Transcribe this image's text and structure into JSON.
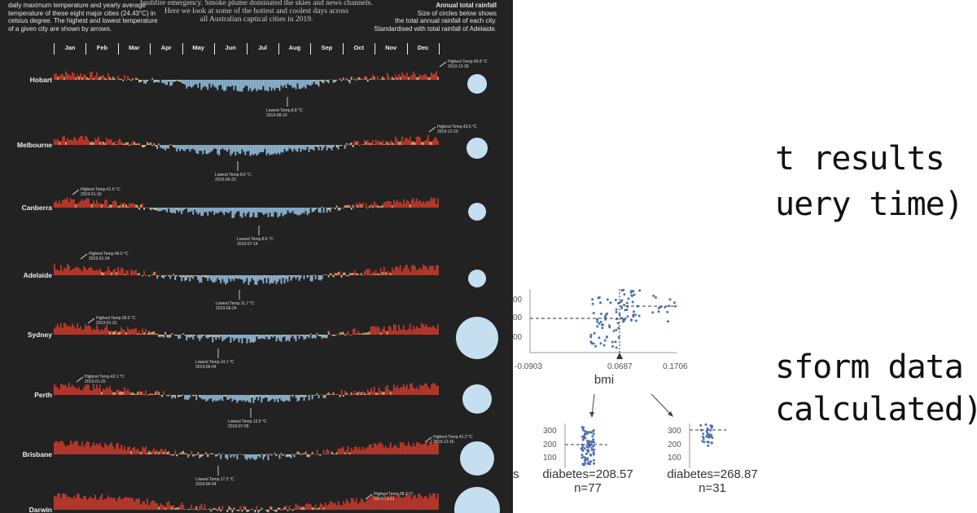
{
  "infographic": {
    "left_intro": [
      "daily maximum temperature and yearly average",
      "temperature of these eight major cities (24.43°C) in",
      "celsius degree. The highest and lowest temperature",
      "of a given city are shown by arrows."
    ],
    "center_intro": [
      "bushfire emergency. Smoke plume dominated the skies and news channels.",
      "Here we look at some of the hottest and coolest days across",
      "all Australian captical cities in 2019."
    ],
    "rainfall": {
      "title": "Annual total rainfall",
      "lines": [
        "Size of circles below shows",
        "the total annual rainfall of each city.",
        "Standardised with total rainfall of Adelaide."
      ]
    },
    "months": [
      "Jan",
      "Feb",
      "Mar",
      "Apr",
      "May",
      "Jun",
      "Jul",
      "Aug",
      "Sep",
      "Oct",
      "Nov",
      "Dec"
    ],
    "cities": [
      {
        "name": "Hobart",
        "high": "Highest Temp.40.8 °C",
        "high_date": "2019-12-30",
        "low": "Lowest Temp.8.8 °C",
        "low_date": "2019-08-10"
      },
      {
        "name": "Melbourne",
        "high": "Highest Temp.43.5 °C",
        "high_date": "2019-12-20",
        "low": "Lowest Temp.9.6 °C",
        "low_date": "2019-06-23"
      },
      {
        "name": "Canberra",
        "high": "Highest Temp.41.6 °C",
        "high_date": "2019-01-16",
        "low": "Lowest Temp.8.6 °C",
        "low_date": "2019-07-14"
      },
      {
        "name": "Adelaide",
        "high": "Highest Temp.46.6 °C",
        "high_date": "2019-01-24",
        "low": "Lowest Temp.11.7 °C",
        "low_date": "2019-06-24"
      },
      {
        "name": "Sydney",
        "high": "Highest Temp.39.6 °C",
        "high_date": "2019-01-31",
        "low": "Lowest Temp.14.1 °C",
        "low_date": "2019-06-04"
      },
      {
        "name": "Perth",
        "high": "Highest Temp.42.1 °C",
        "high_date": "2019-01-20",
        "low": "Lowest Temp.13.5 °C",
        "low_date": "2019-07-05"
      },
      {
        "name": "Brisbane",
        "high": "Highest Temp.41.2 °C",
        "high_date": "2019-12-16",
        "low": "Lowest Temp.17.2 °C",
        "low_date": "2019-06-04"
      },
      {
        "name": "Darwin",
        "high": "Highest Temp.38.2 °C",
        "high_date": "2019-10-21"
      }
    ],
    "colors": {
      "background": "#222222",
      "hot": "#c0392b",
      "warm": "#e8a070",
      "cool": "#8fb8d8",
      "circle": "#c5def0"
    }
  },
  "tree": {
    "root_yticks": [
      "00",
      "00",
      "00"
    ],
    "root_xticks": [
      "-0.0903",
      "0.0687",
      "0.1706"
    ],
    "feature": "bmi",
    "left_leaf": {
      "yticks": [
        "300",
        "200",
        "100"
      ],
      "label": "diabetes=208.57",
      "n": "n=77"
    },
    "right_leaf": {
      "yticks": [
        "300",
        "200",
        "100"
      ],
      "label": "diabetes=268.87",
      "n": "n=31"
    },
    "cut_label": "s",
    "point_color": "#4c72b0"
  },
  "handwritten": [
    "t results",
    "uery time)",
    "sform data",
    "calculated)"
  ]
}
